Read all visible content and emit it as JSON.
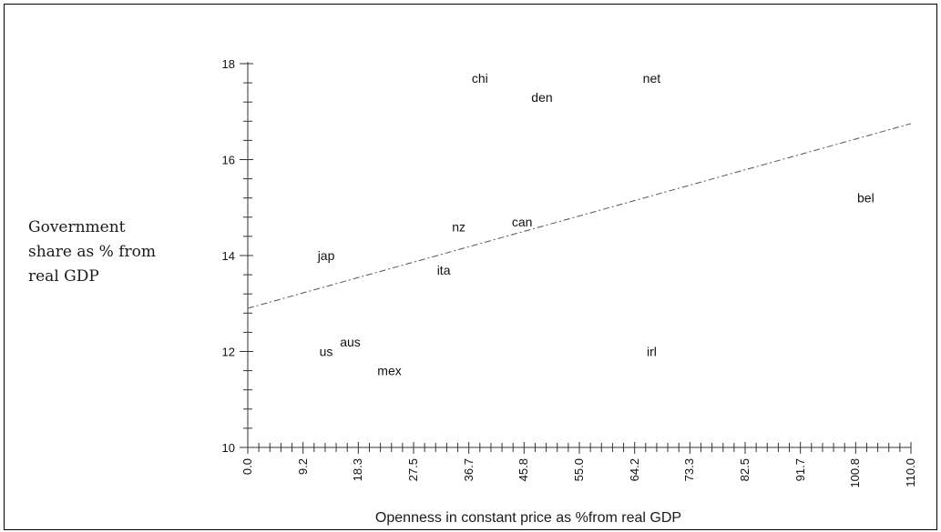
{
  "chart_data": {
    "type": "scatter",
    "title": "",
    "ylabel": "Government\nshare as % from\nreal GDP",
    "xlabel": "Openness in constant price as %from real GDP",
    "xlim": [
      0,
      110
    ],
    "ylim": [
      10,
      18
    ],
    "x_ticks": [
      0.0,
      9.2,
      18.3,
      27.5,
      36.7,
      45.8,
      55.0,
      64.2,
      73.3,
      82.5,
      91.7,
      100.8,
      110.0
    ],
    "x_tick_labels": [
      "0.0",
      "9.2",
      "18.3",
      "27.5",
      "36.7",
      "45.8",
      "55.0",
      "64.2",
      "73.3",
      "82.5",
      "91.7",
      "100.8",
      "110.0"
    ],
    "y_ticks": [
      10,
      12,
      14,
      16,
      18
    ],
    "y_tick_labels": [
      "10",
      "12",
      "14",
      "16",
      "18"
    ],
    "points": [
      {
        "label": "chi",
        "x": 38.5,
        "y": 17.7
      },
      {
        "label": "den",
        "x": 48.8,
        "y": 17.3
      },
      {
        "label": "net",
        "x": 67.0,
        "y": 17.7
      },
      {
        "label": "bel",
        "x": 102.5,
        "y": 15.2
      },
      {
        "label": "can",
        "x": 45.5,
        "y": 14.7
      },
      {
        "label": "nz",
        "x": 35.0,
        "y": 14.6
      },
      {
        "label": "jap",
        "x": 13.0,
        "y": 14.0
      },
      {
        "label": "ita",
        "x": 32.5,
        "y": 13.7
      },
      {
        "label": "aus",
        "x": 17.0,
        "y": 12.2
      },
      {
        "label": "us",
        "x": 13.0,
        "y": 12.0
      },
      {
        "label": "mex",
        "x": 23.5,
        "y": 11.6
      },
      {
        "label": "irl",
        "x": 67.0,
        "y": 12.0
      }
    ],
    "fit_line": {
      "style": "dash-dot",
      "x": [
        0,
        110
      ],
      "y": [
        12.9,
        16.75
      ]
    },
    "grid": false,
    "legend": "none"
  }
}
